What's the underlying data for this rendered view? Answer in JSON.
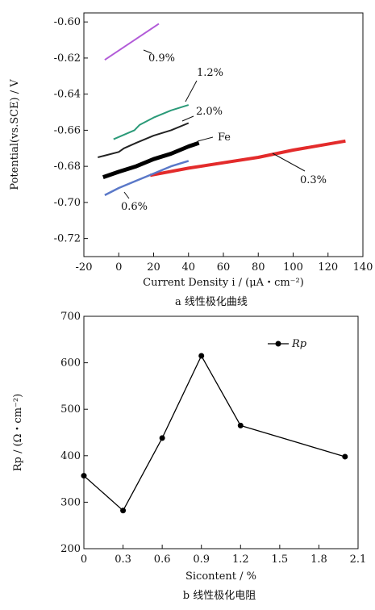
{
  "chart_data": [
    {
      "type": "line",
      "xlabel": "Current Density i / (μA・cm⁻²)",
      "ylabel": "Potential(vs.SCE) / V",
      "caption": "a 线性极化曲线",
      "xlim": [
        -20,
        140
      ],
      "ylim": [
        -0.73,
        -0.595
      ],
      "xticks": [
        "-20",
        "0",
        "20",
        "40",
        "60",
        "80",
        "100",
        "120",
        "140"
      ],
      "yticks": [
        "-0.60",
        "-0.62",
        "-0.64",
        "-0.66",
        "-0.68",
        "-0.70",
        "-0.72"
      ],
      "series": [
        {
          "name": "0.9%",
          "color": "#b25bd8",
          "x": [
            -8,
            23
          ],
          "y": [
            -0.621,
            -0.601
          ]
        },
        {
          "name": "1.2%",
          "color": "#2a9a78",
          "x": [
            -3,
            9,
            12,
            20,
            30,
            40
          ],
          "y": [
            -0.665,
            -0.66,
            -0.657,
            -0.653,
            -0.649,
            -0.646
          ]
        },
        {
          "name": "2.0%",
          "color": "#222222",
          "x": [
            -12,
            0,
            3,
            10,
            20,
            30,
            40
          ],
          "y": [
            -0.675,
            -0.672,
            -0.67,
            -0.667,
            -0.663,
            -0.66,
            -0.656
          ]
        },
        {
          "name": "Fe",
          "color": "#000000",
          "x": [
            -9,
            0,
            10,
            20,
            30,
            40,
            46
          ],
          "y": [
            -0.686,
            -0.683,
            -0.68,
            -0.676,
            -0.673,
            -0.669,
            -0.667
          ]
        },
        {
          "name": "0.3%",
          "color": "#e32b2b",
          "x": [
            18,
            40,
            60,
            80,
            100,
            130
          ],
          "y": [
            -0.685,
            -0.681,
            -0.678,
            -0.675,
            -0.671,
            -0.666
          ]
        },
        {
          "name": "0.6%",
          "color": "#5a78c8",
          "x": [
            -8,
            0,
            10,
            20,
            30,
            40
          ],
          "y": [
            -0.696,
            -0.692,
            -0.688,
            -0.684,
            -0.68,
            -0.677
          ]
        }
      ]
    },
    {
      "type": "line",
      "xlabel": "Sicontent / %",
      "ylabel": "Rp / (Ω・cm⁻²)",
      "caption": "b 线性极化电阻",
      "xlim": [
        0,
        2.1
      ],
      "ylim": [
        200,
        700
      ],
      "xticks": [
        "0",
        "0.3",
        "0.6",
        "0.9",
        "1.2",
        "1.5",
        "1.8",
        "2.1"
      ],
      "yticks": [
        "200",
        "300",
        "400",
        "500",
        "600",
        "700"
      ],
      "legend": "top-right",
      "series": [
        {
          "name": "Rp",
          "color": "#000000",
          "x": [
            0,
            0.3,
            0.6,
            0.9,
            1.2,
            2.0
          ],
          "y": [
            357,
            282,
            438,
            615,
            465,
            398
          ]
        }
      ]
    }
  ]
}
